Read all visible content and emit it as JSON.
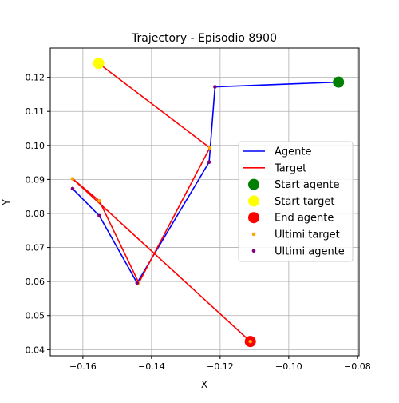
{
  "chart_data": {
    "type": "line",
    "title": "Trajectory - Episodio 8900",
    "xlabel": "X",
    "ylabel": "Y",
    "xlim": [
      -0.1695,
      -0.0795
    ],
    "ylim": [
      0.0382,
      0.1286
    ],
    "xticks": [
      -0.16,
      -0.14,
      -0.12,
      -0.1,
      -0.08
    ],
    "xtick_labels": [
      "−0.16",
      "−0.14",
      "−0.12",
      "−0.10",
      "−0.08"
    ],
    "yticks": [
      0.04,
      0.05,
      0.06,
      0.07,
      0.08,
      0.09,
      0.1,
      0.11,
      0.12
    ],
    "ytick_labels": [
      "0.04",
      "0.05",
      "0.06",
      "0.07",
      "0.08",
      "0.09",
      "0.10",
      "0.11",
      "0.12"
    ],
    "grid": true,
    "legend_position": "center-right",
    "series": [
      {
        "name": "Agente",
        "kind": "line",
        "color": "#0000ff",
        "x": [
          -0.163,
          -0.1552,
          -0.1442,
          -0.1232,
          -0.1215,
          -0.0855
        ],
        "y": [
          0.0873,
          0.0793,
          0.0596,
          0.0951,
          0.1172,
          0.1186
        ]
      },
      {
        "name": "Target",
        "kind": "line",
        "color": "#ff0000",
        "x": [
          -0.1554,
          -0.123,
          -0.1437,
          -0.1552,
          -0.163,
          -0.1112
        ],
        "y": [
          0.1241,
          0.0993,
          0.0596,
          0.0837,
          0.0902,
          0.0424
        ]
      },
      {
        "name": "Start agente",
        "kind": "point",
        "color": "#008000",
        "size": "large",
        "x": [
          -0.0855
        ],
        "y": [
          0.1186
        ]
      },
      {
        "name": "Start target",
        "kind": "point",
        "color": "#ffff00",
        "size": "large",
        "x": [
          -0.1554
        ],
        "y": [
          0.1241
        ]
      },
      {
        "name": "End agente",
        "kind": "point",
        "color": "#ff0000",
        "size": "large",
        "x": [
          -0.1112
        ],
        "y": [
          0.0424
        ]
      },
      {
        "name": "Ultimi target",
        "kind": "point",
        "color": "#ffa500",
        "size": "small",
        "x": [
          -0.123,
          -0.1437,
          -0.1552,
          -0.163,
          -0.1112
        ],
        "y": [
          0.0993,
          0.0596,
          0.0837,
          0.0902,
          0.0424
        ]
      },
      {
        "name": "Ultimi agente",
        "kind": "point",
        "color": "#800080",
        "size": "small",
        "x": [
          -0.163,
          -0.1552,
          -0.1442,
          -0.1232,
          -0.1215
        ],
        "y": [
          0.0873,
          0.0793,
          0.0596,
          0.0951,
          0.1172
        ]
      }
    ],
    "legend": [
      "Agente",
      "Target",
      "Start agente",
      "Start target",
      "End agente",
      "Ultimi target",
      "Ultimi agente"
    ]
  }
}
